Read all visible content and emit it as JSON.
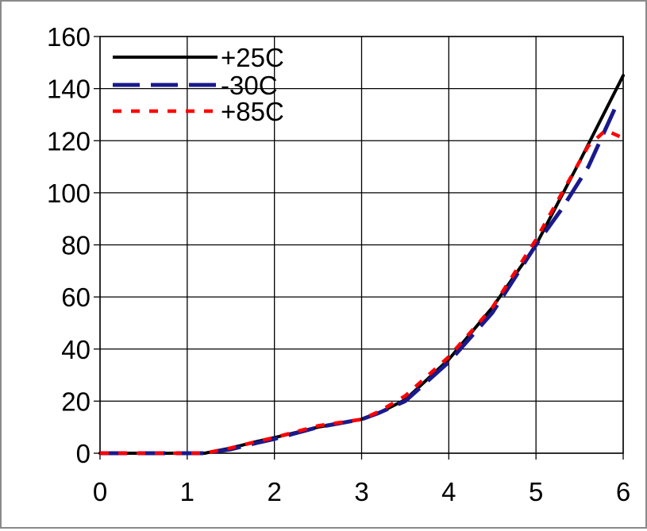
{
  "chart_data": {
    "type": "line",
    "title": "",
    "xlabel": "",
    "ylabel": "",
    "xlim": [
      0,
      6
    ],
    "ylim": [
      0,
      160
    ],
    "x_ticks": [
      "0",
      "1",
      "2",
      "3",
      "4",
      "5",
      "6"
    ],
    "y_ticks": [
      "0",
      "20",
      "40",
      "60",
      "80",
      "100",
      "120",
      "140",
      "160"
    ],
    "grid": true,
    "legend_position": "top-left",
    "series": [
      {
        "name": "+25C",
        "color": "#000000",
        "style": "solid",
        "x": [
          0,
          0.5,
          1.0,
          1.2,
          1.5,
          1.8,
          2.0,
          2.5,
          3.0,
          3.2,
          3.5,
          4.0,
          4.5,
          5.0,
          5.5,
          6.0
        ],
        "y": [
          0,
          0,
          0,
          0,
          2,
          4.5,
          6,
          10,
          13,
          15.5,
          20.5,
          36,
          56,
          80,
          112,
          145
        ]
      },
      {
        "name": "-30C",
        "color": "#1a1a8c",
        "style": "dashed",
        "x": [
          0,
          0.5,
          1.0,
          1.2,
          1.5,
          1.8,
          2.0,
          2.5,
          3.0,
          3.2,
          3.5,
          4.0,
          4.5,
          5.0,
          5.3,
          5.6,
          5.9
        ],
        "y": [
          0,
          0,
          0,
          0,
          1.5,
          4,
          5.5,
          10,
          13,
          15.5,
          20,
          35,
          54,
          80,
          94,
          110,
          132
        ]
      },
      {
        "name": "+85C",
        "color": "#ff0000",
        "style": "dotted",
        "x": [
          0,
          0.5,
          1.0,
          1.2,
          1.5,
          1.8,
          2.0,
          2.5,
          3.0,
          3.2,
          3.5,
          4.0,
          4.5,
          5.0,
          5.3,
          5.6,
          5.8,
          6.0
        ],
        "y": [
          0,
          0,
          0,
          0,
          2,
          4.5,
          6,
          10.5,
          13,
          16,
          22,
          37,
          56,
          82,
          100,
          118,
          124,
          121
        ]
      }
    ]
  }
}
